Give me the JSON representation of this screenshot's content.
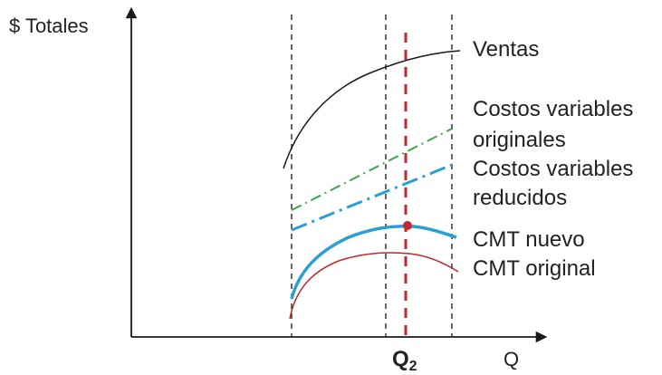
{
  "axes": {
    "y_label": "$ Totales",
    "x_label": "Q"
  },
  "markers": {
    "q2_main": "Q",
    "q2_sub": "2"
  },
  "curves": {
    "ventas": {
      "label": "Ventas",
      "color": "#1a1a1a"
    },
    "cv_originales": {
      "label_line1": "Costos variables",
      "label_line2": "originales",
      "color": "#3aa84a"
    },
    "cv_reducidos": {
      "label_line1": "Costos variables",
      "label_line2": "reducidos",
      "color": "#2a9fd6"
    },
    "cmt_nuevo": {
      "label": "CMT nuevo",
      "color": "#2a9fd6"
    },
    "cmt_original": {
      "label": "CMT original",
      "color": "#c0282d"
    }
  },
  "colors": {
    "axis": "#1a1a1a",
    "dashed_guides": "#333333",
    "q2_line": "#c0282d",
    "point": "#c0282d"
  }
}
